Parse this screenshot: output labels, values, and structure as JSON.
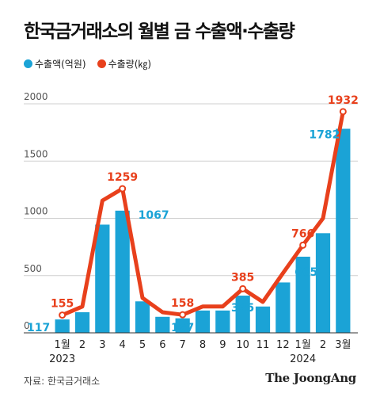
{
  "header": {
    "title": "한국금거래소의 월별 금 수출액·수출량"
  },
  "legend": {
    "export_value": "수출액(억원)",
    "export_volume": "수출량(㎏)"
  },
  "colors": {
    "bar": "#1ba3d6",
    "line": "#e8401c",
    "grid": "#cfcfcf"
  },
  "footer": {
    "source": "자료: 한국금거래소",
    "brand": "The JoongAng"
  },
  "chart_data": {
    "type": "bar+line",
    "categories": [
      "1월",
      "2",
      "3",
      "4",
      "5",
      "6",
      "7",
      "8",
      "9",
      "10",
      "11",
      "12",
      "1월",
      "2",
      "3월"
    ],
    "year_labels": [
      {
        "index": 0,
        "label": "2023"
      },
      {
        "index": 12,
        "label": "2024"
      }
    ],
    "ylim": [
      0,
      2000
    ],
    "yticks": [
      0,
      500,
      1000,
      1500,
      2000
    ],
    "grid": true,
    "series": [
      {
        "name": "수출액(억원)",
        "type": "bar",
        "values": [
          117,
          180,
          945,
          1067,
          275,
          140,
          127,
          195,
          195,
          325,
          230,
          440,
          665,
          870,
          1782
        ]
      },
      {
        "name": "수출량(㎏)",
        "type": "line",
        "values": [
          155,
          230,
          1155,
          1259,
          305,
          180,
          158,
          230,
          230,
          385,
          270,
          520,
          766,
          1000,
          1932
        ]
      }
    ],
    "data_labels": {
      "bar": [
        {
          "index": 0,
          "text": "117"
        },
        {
          "index": 3,
          "text": "1067"
        },
        {
          "index": 6,
          "text": "127"
        },
        {
          "index": 9,
          "text": "325"
        },
        {
          "index": 12,
          "text": "665"
        },
        {
          "index": 14,
          "text": "1782"
        }
      ],
      "line": [
        {
          "index": 0,
          "text": "155"
        },
        {
          "index": 3,
          "text": "1259"
        },
        {
          "index": 6,
          "text": "158"
        },
        {
          "index": 9,
          "text": "385"
        },
        {
          "index": 12,
          "text": "766"
        },
        {
          "index": 14,
          "text": "1932"
        }
      ]
    }
  }
}
